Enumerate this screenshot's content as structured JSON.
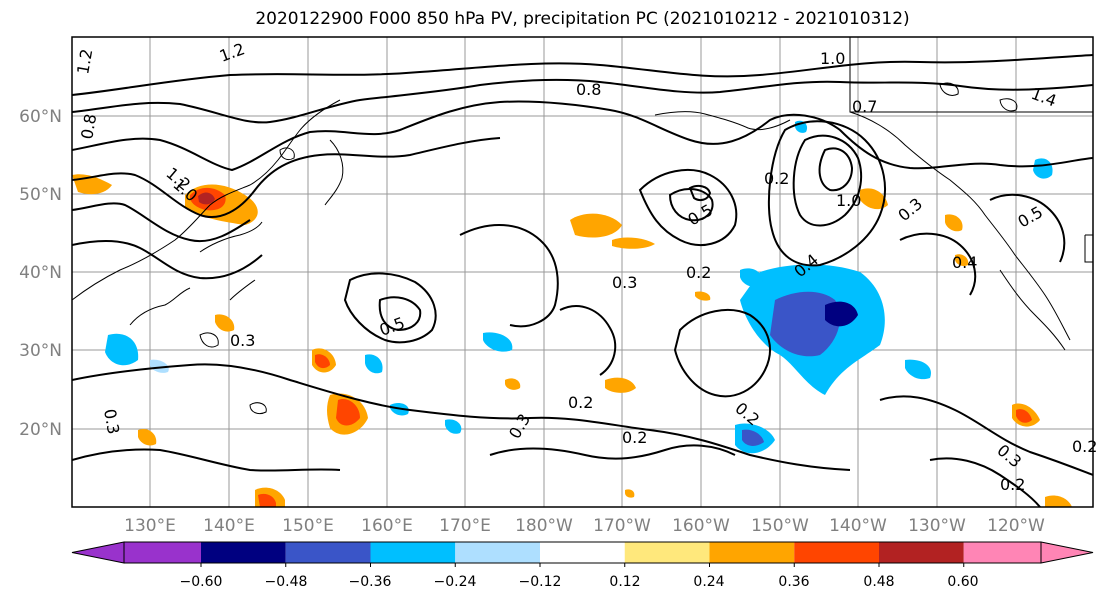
{
  "title": "2020122900 F000 850 hPa PV, precipitation PC (2021010212 - 2021010312)",
  "lat_labels": [
    "60°N",
    "50°N",
    "40°N",
    "30°N",
    "20°N"
  ],
  "lon_labels": [
    "130°E",
    "140°E",
    "150°E",
    "160°E",
    "170°E",
    "180°W",
    "170°W",
    "160°W",
    "150°W",
    "140°W",
    "130°W",
    "120°W"
  ],
  "contour_labels": [
    "1.2",
    "0.8",
    "1.2",
    "1.2",
    "1.0",
    "0.8",
    "1.0",
    "0.7",
    "1.4",
    "0.2",
    "0.5",
    "1.0",
    "0.3",
    "0.4",
    "0.3",
    "0.2",
    "0.4",
    "0.5",
    "0.3",
    "0.2",
    "0.2",
    "0.3",
    "0.2",
    "0.2",
    "0.3",
    "0.3",
    "0.5",
    "0.2"
  ],
  "colorbar": {
    "ticks": [
      "−0.60",
      "−0.48",
      "−0.36",
      "−0.24",
      "−0.12",
      "0.12",
      "0.24",
      "0.36",
      "0.48",
      "0.60"
    ],
    "colors": [
      "#9932CC",
      "#000080",
      "#3A55C8",
      "#00BFFF",
      "#AEDFFF",
      "#FFFFFF",
      "#FFE87C",
      "#FFA500",
      "#FF4500",
      "#B22222",
      "#FF85B5"
    ]
  },
  "colors": {
    "positive": "#FFA500",
    "negative": "#00BFFF",
    "contour": "#000000",
    "grid": "#999999"
  }
}
